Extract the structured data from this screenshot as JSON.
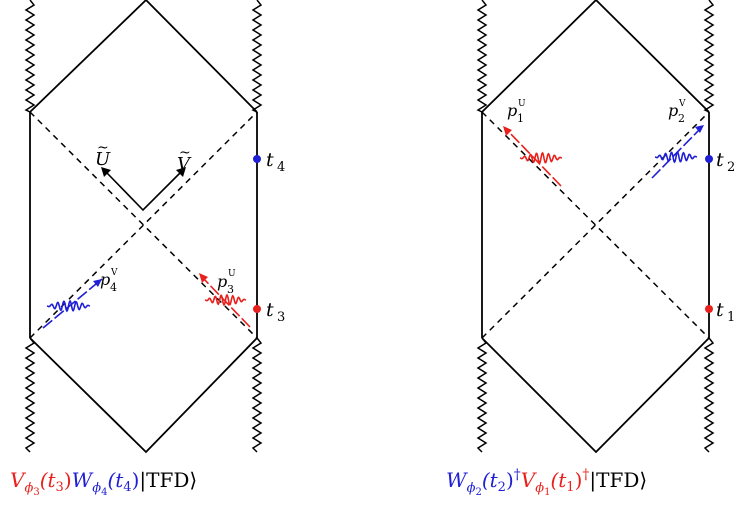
{
  "colors": {
    "line": "#000000",
    "red": "#e8211d",
    "blue": "#1f1fd6",
    "dot_red": "#e8211d",
    "dot_blue": "#1f1fd6"
  },
  "left_diagram": {
    "time_labels": {
      "t4": "t",
      "t4_sub": "4",
      "t3": "t",
      "t3_sub": "3"
    },
    "axis_labels": {
      "U": "U",
      "V": "V"
    },
    "momenta": {
      "p4_base": "p",
      "p4_sub": "4",
      "p4_sup": "V",
      "p3_base": "p",
      "p3_sub": "3",
      "p3_sup": "U"
    },
    "caption": {
      "op1": "V",
      "op1_sub": "ϕ",
      "op1_subsub": "3",
      "op1_arg": "(t",
      "op1_arg_sub": "3",
      "op1_close": ")",
      "op2": "W",
      "op2_sub": "ϕ",
      "op2_subsub": "4",
      "op2_arg": "(t",
      "op2_arg_sub": "4",
      "op2_close": ")",
      "ket": "|TFD⟩"
    }
  },
  "right_diagram": {
    "time_labels": {
      "t2": "t",
      "t2_sub": "2",
      "t1": "t",
      "t1_sub": "1"
    },
    "momenta": {
      "p1_base": "p",
      "p1_sub": "1",
      "p1_sup": "U",
      "p2_base": "p",
      "p2_sub": "2",
      "p2_sup": "V"
    },
    "caption": {
      "op1": "W",
      "op1_sub": "ϕ",
      "op1_subsub": "2",
      "op1_arg": "(t",
      "op1_arg_sub": "2",
      "op1_close": ")",
      "op1_dag": "†",
      "op2": "V",
      "op2_sub": "ϕ",
      "op2_subsub": "1",
      "op2_arg": "(t",
      "op2_arg_sub": "1",
      "op2_close": ")",
      "op2_dag": "†",
      "ket": "|TFD⟩"
    }
  }
}
